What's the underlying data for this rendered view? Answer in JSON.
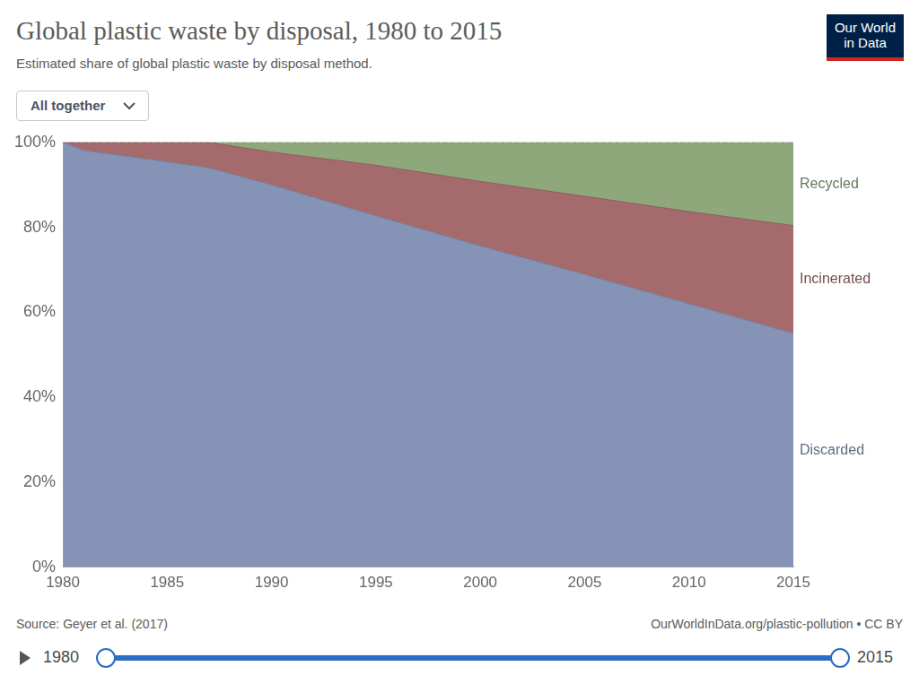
{
  "chart_data": {
    "type": "area",
    "title": "Global plastic waste by disposal, 1980 to 2015",
    "subtitle": "Estimated share of global plastic waste by disposal method.",
    "selector": "All together",
    "logo": [
      "Our World",
      "in Data"
    ],
    "source": "Source: Geyer et al. (2017)",
    "license": "OurWorldInData.org/plastic-pollution • CC BY",
    "timeline": [
      1980,
      2015
    ],
    "x": [
      1980,
      1981,
      1985,
      1987,
      1990,
      1995,
      2000,
      2005,
      2010,
      2015
    ],
    "series": [
      {
        "name": "Discarded",
        "color": "#8594b6",
        "values": [
          100,
          98.1,
          95.4,
          94,
          90,
          82.7,
          75.6,
          68.9,
          62,
          55
        ]
      },
      {
        "name": "Incinerated",
        "color": "#a56a6c",
        "values": [
          0,
          1.9,
          4.6,
          6,
          7.7,
          11.9,
          15.2,
          18.4,
          21.7,
          25.4
        ]
      },
      {
        "name": "Recycled",
        "color": "#8ea87c",
        "values": [
          0,
          0,
          0,
          0,
          2.3,
          5.4,
          9.2,
          12.7,
          16.3,
          19.6
        ]
      }
    ],
    "xlim": [
      1980,
      2015
    ],
    "xticks": [
      1980,
      1985,
      1990,
      1995,
      2000,
      2005,
      2010,
      2015
    ],
    "ylim": [
      0,
      100
    ],
    "yticks": [
      {
        "value": 0,
        "label": "0%"
      },
      {
        "value": 20,
        "label": "20%"
      },
      {
        "value": 40,
        "label": "40%"
      },
      {
        "value": 60,
        "label": "60%"
      },
      {
        "value": 80,
        "label": "80%"
      },
      {
        "value": 100,
        "label": "100%"
      }
    ],
    "stacked": true,
    "grid": true
  }
}
